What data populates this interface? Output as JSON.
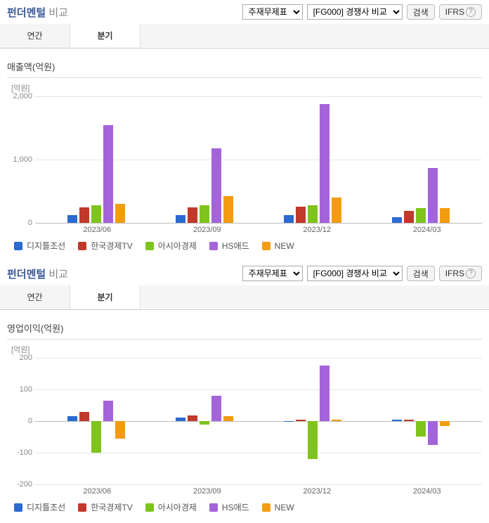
{
  "series_colors": [
    "#2a6ad1",
    "#c0392b",
    "#7fc41c",
    "#a364d9",
    "#f39c12"
  ],
  "series_names": [
    "디지틀조선",
    "한국경제TV",
    "아시아경제",
    "HS애드",
    "NEW"
  ],
  "controls": {
    "select1": "주재무제표",
    "select2": "[FG000] 경쟁사 비교",
    "search": "검색",
    "ifrs": "IFRS"
  },
  "tabs": {
    "annual": "연간",
    "quarter": "분기"
  },
  "panels": [
    {
      "title_main": "펀더멘털",
      "title_sub": "비교",
      "metric": "매출액(억원)",
      "y_unit": "[억원]",
      "ylim": [
        0,
        2000
      ],
      "ystep": 1000,
      "categories": [
        "2023/06",
        "2023/09",
        "2023/12",
        "2024/03"
      ],
      "data": [
        [
          120,
          250,
          280,
          1550,
          300
        ],
        [
          120,
          240,
          280,
          1180,
          420
        ],
        [
          120,
          260,
          280,
          1880,
          400
        ],
        [
          90,
          190,
          230,
          870,
          230
        ]
      ]
    },
    {
      "title_main": "펀더멘털",
      "title_sub": "비교",
      "metric": "영업이익(억원)",
      "y_unit": "[억원]",
      "ylim": [
        -200,
        200
      ],
      "ystep": 100,
      "categories": [
        "2023/06",
        "2023/09",
        "2023/12",
        "2024/03"
      ],
      "data": [
        [
          15,
          28,
          -100,
          65,
          -55
        ],
        [
          12,
          18,
          -12,
          80,
          15
        ],
        [
          -3,
          5,
          -120,
          175,
          5
        ],
        [
          5,
          5,
          -48,
          -75,
          -15
        ]
      ]
    }
  ]
}
